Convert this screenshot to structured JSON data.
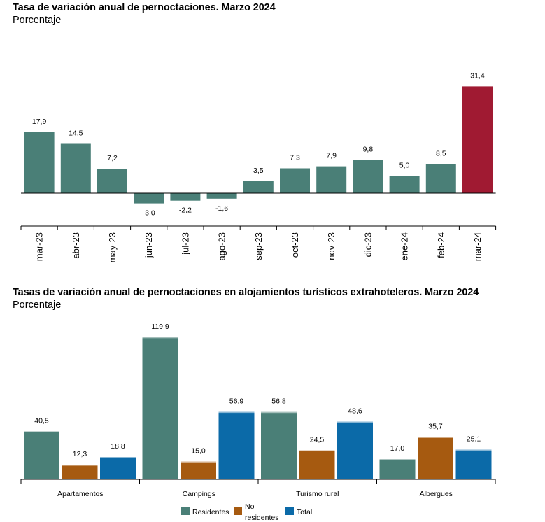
{
  "chart_data": [
    {
      "type": "bar",
      "title": "Tasa de variación anual de pernoctaciones. Marzo 2024",
      "subtitle": "Porcentaje",
      "categories": [
        "mar-23",
        "abr-23",
        "may-23",
        "jun-23",
        "jul-23",
        "ago-23",
        "sep-23",
        "oct-23",
        "nov-23",
        "dic-23",
        "ene-24",
        "feb-24",
        "mar-24"
      ],
      "values": [
        17.9,
        14.5,
        7.2,
        -3.0,
        -2.2,
        -1.6,
        3.5,
        7.3,
        7.9,
        9.8,
        5.0,
        8.5,
        31.4
      ],
      "value_labels": [
        "17,9",
        "14,5",
        "7,2",
        "-3,0",
        "-2,2",
        "-1,6",
        "3,5",
        "7,3",
        "7,9",
        "9,8",
        "5,0",
        "8,5",
        "31,4"
      ],
      "colors": {
        "default": "#4a7f77",
        "highlight": "#a01a32"
      },
      "highlight_index": 12,
      "xlabel": "",
      "ylabel": "",
      "ylim": [
        -5,
        35
      ],
      "grid": false
    },
    {
      "type": "bar",
      "title": "Tasas de variación anual de pernoctaciones en alojamientos turísticos extrahoteleros. Marzo 2024",
      "subtitle": "Porcentaje",
      "categories": [
        "Apartamentos",
        "Campings",
        "Turismo rural",
        "Albergues"
      ],
      "series": [
        {
          "name": "Residentes",
          "color": "#4a7f77",
          "values": [
            40.5,
            119.9,
            56.8,
            17.0
          ],
          "labels": [
            "40,5",
            "119,9",
            "56,8",
            "17,0"
          ]
        },
        {
          "name": "No residentes",
          "color": "#a65a10",
          "values": [
            12.3,
            15.0,
            24.5,
            35.7
          ],
          "labels": [
            "12,3",
            "15,0",
            "24,5",
            "35,7"
          ]
        },
        {
          "name": "Total",
          "color": "#0b6aa8",
          "values": [
            18.8,
            56.9,
            48.6,
            25.1
          ],
          "labels": [
            "18,8",
            "56,9",
            "48,6",
            "25,1"
          ]
        }
      ],
      "legend_labels": [
        "Residentes",
        "No",
        "residentes",
        "Total"
      ],
      "legend_position": "bottom",
      "xlabel": "",
      "ylabel": "",
      "ylim": [
        0,
        125
      ],
      "grid": false
    }
  ]
}
